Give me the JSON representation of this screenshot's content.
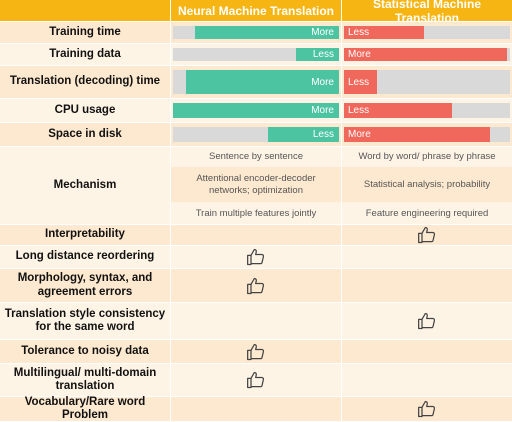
{
  "header": {
    "col1": "",
    "col2": "Neural Machine Translation",
    "col3": "Statistical Machine Translation"
  },
  "colors": {
    "header": "#f7b514",
    "nmt_bar": "#4cc3a1",
    "smt_bar": "#f0675b",
    "track": "#d9d9d9"
  },
  "bar_rows": [
    {
      "label": "Training time",
      "nmt_text": "More",
      "nmt_fill": 0.87,
      "smt_text": "Less",
      "smt_fill": 0.48
    },
    {
      "label": "Training data",
      "nmt_text": "Less",
      "nmt_fill": 0.26,
      "smt_text": "More",
      "smt_fill": 0.98
    },
    {
      "label": "Translation (decoding) time",
      "nmt_text": "More",
      "nmt_fill": 0.92,
      "smt_text": "Less",
      "smt_fill": 0.2
    },
    {
      "label": "CPU usage",
      "nmt_text": "More",
      "nmt_fill": 1.0,
      "smt_text": "Less",
      "smt_fill": 0.65
    },
    {
      "label": "Space in disk",
      "nmt_text": "Less",
      "nmt_fill": 0.43,
      "smt_text": "More",
      "smt_fill": 0.88
    }
  ],
  "mechanism": {
    "label": "Mechanism",
    "nmt": [
      "Sentence by sentence",
      "Attentional encoder-decoder networks; optimization",
      "Train multiple features jointly"
    ],
    "smt": [
      "Word by word/ phrase by phrase",
      "Statistical analysis; probability",
      "Feature engineering required"
    ]
  },
  "thumb_rows": [
    {
      "label": "Interpretability",
      "winner": "smt"
    },
    {
      "label": "Long distance reordering",
      "winner": "nmt"
    },
    {
      "label": "Morphology, syntax, and agreement errors",
      "winner": "nmt"
    },
    {
      "label": "Translation style consistency for the same word",
      "winner": "smt"
    },
    {
      "label": "Tolerance to noisy data",
      "winner": "nmt"
    },
    {
      "label": "Multilingual/ multi-domain translation",
      "winner": "nmt"
    },
    {
      "label": "Vocabulary/Rare word Problem",
      "winner": "smt"
    }
  ]
}
